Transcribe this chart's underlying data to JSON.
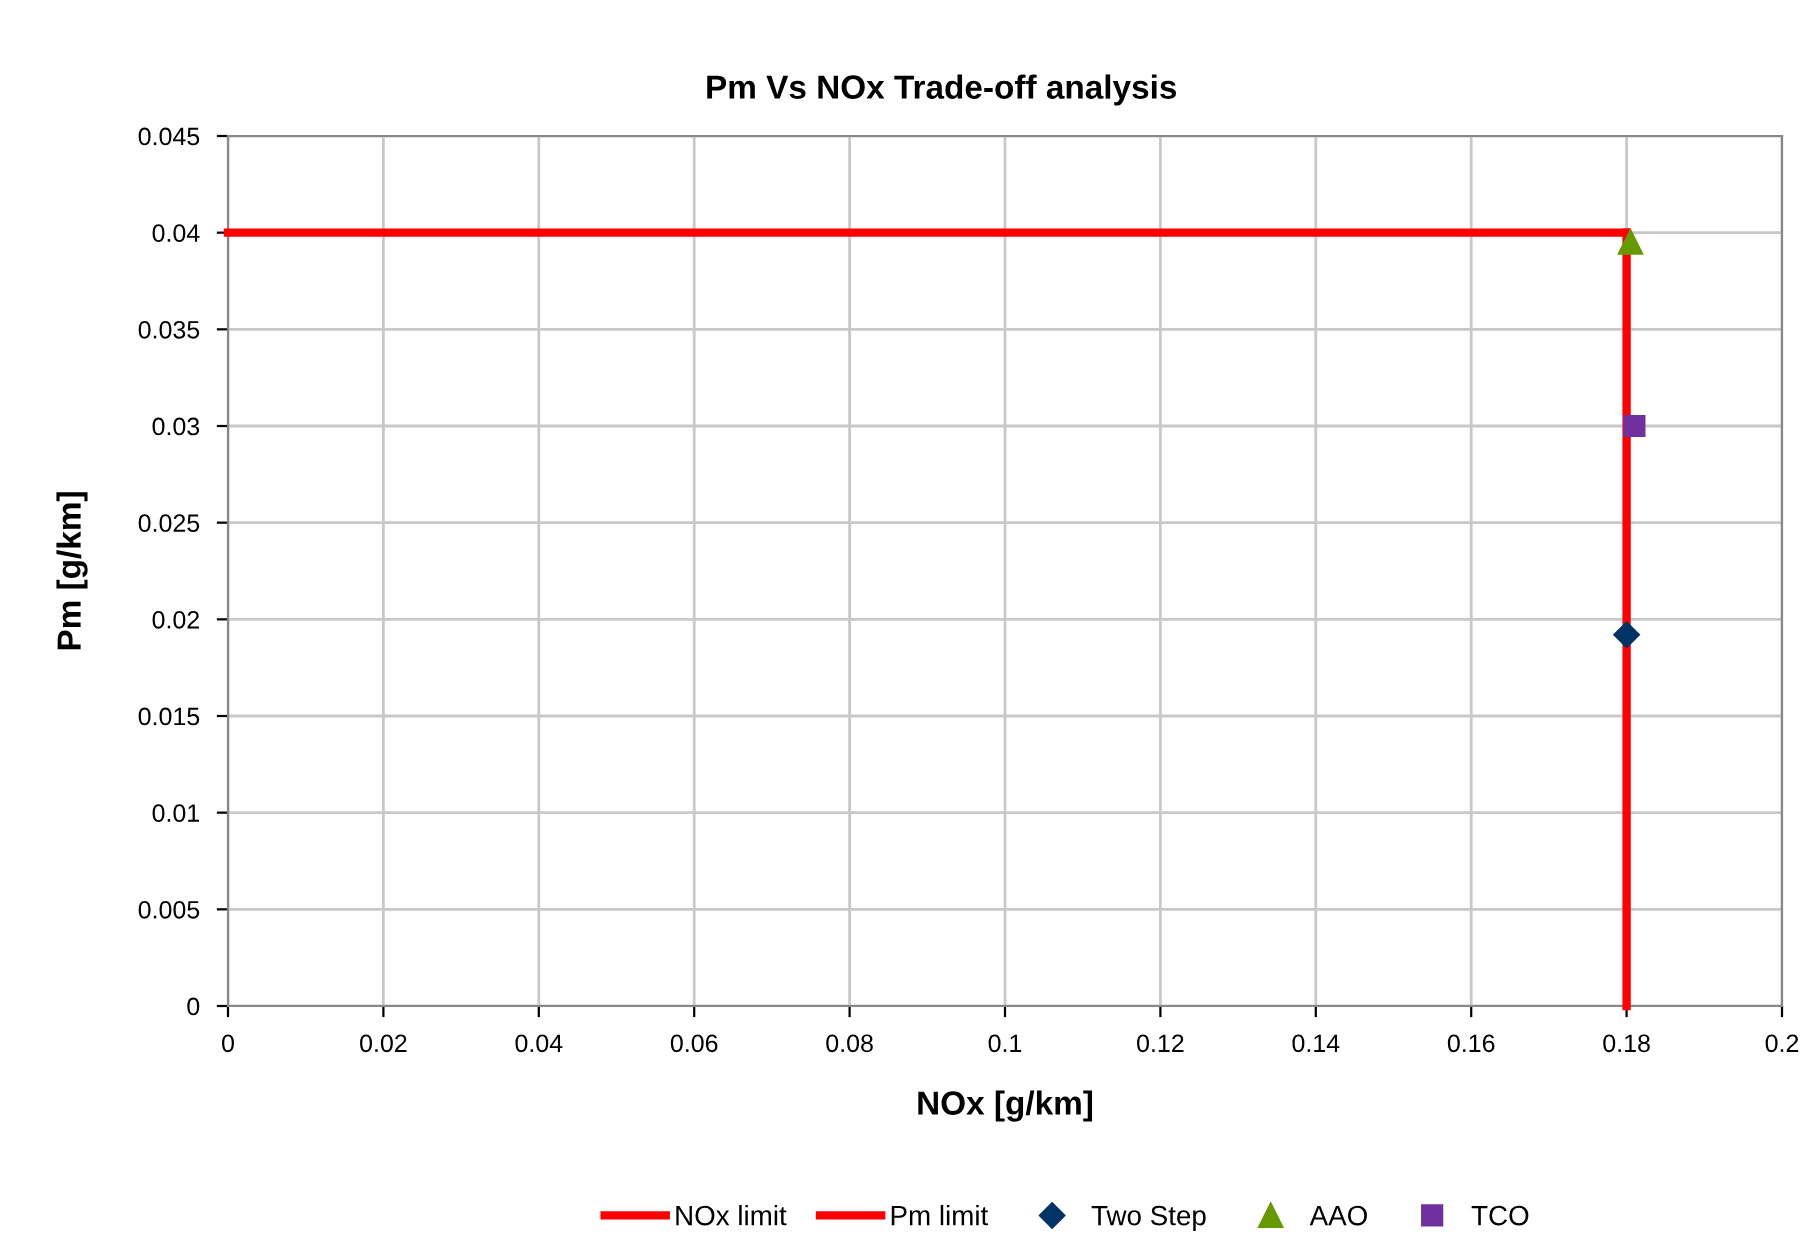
{
  "chart_data": {
    "type": "scatter",
    "title": "Pm Vs NOx Trade-off analysis",
    "xlabel": "NOx [g/km]",
    "ylabel": "Pm [g/km]",
    "xlim": [
      0,
      0.2
    ],
    "xticks": [
      0,
      0.02,
      0.04,
      0.06,
      0.08,
      0.1,
      0.12,
      0.14,
      0.16,
      0.18,
      0.2
    ],
    "ylim": [
      0,
      0.045
    ],
    "yticks": [
      0,
      0.005,
      0.01,
      0.015,
      0.02,
      0.025,
      0.03,
      0.035,
      0.04,
      0.045
    ],
    "grid": true,
    "legend": "bottom",
    "series": [
      {
        "name": "NOx limit",
        "type": "line",
        "marker": "none",
        "color": "#ff0000",
        "x": [
          0.18,
          0.18
        ],
        "values": [
          0,
          0.04
        ]
      },
      {
        "name": "Pm limit",
        "type": "line",
        "marker": "none",
        "color": "#ff0000",
        "x": [
          0,
          0.18
        ],
        "values": [
          0.04,
          0.04
        ]
      },
      {
        "name": "Two Step",
        "marker": "diamond",
        "color": "#003366",
        "x": [
          0.18
        ],
        "values": [
          0.0192
        ]
      },
      {
        "name": "AAO",
        "marker": "triangle",
        "color": "#669900",
        "x": [
          0.1805
        ],
        "values": [
          0.0395
        ]
      },
      {
        "name": "TCO",
        "marker": "square",
        "color": "#7030a0",
        "x": [
          0.181
        ],
        "values": [
          0.03
        ]
      }
    ]
  }
}
